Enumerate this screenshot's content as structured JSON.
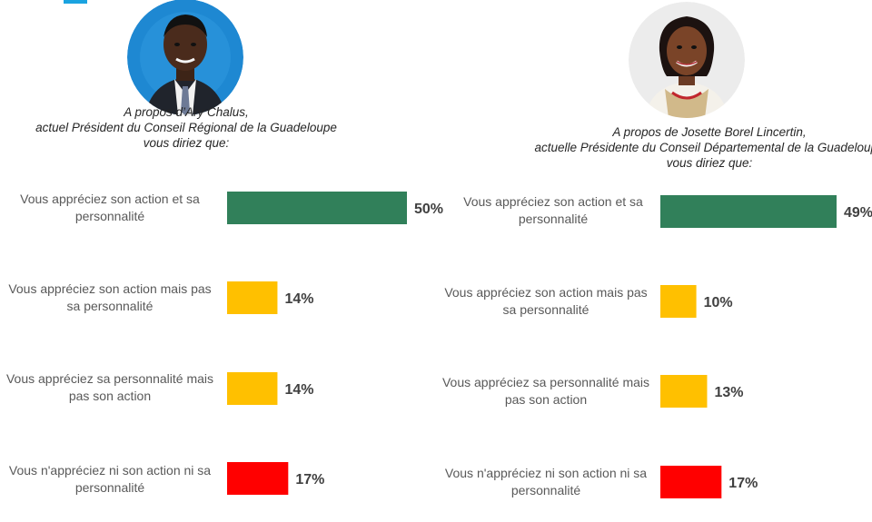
{
  "colors": {
    "green": "#31805a",
    "amber": "#ffc000",
    "red": "#ff0000",
    "accent": "#1aa3e0"
  },
  "chart_data": [
    {
      "type": "bar",
      "orientation": "horizontal",
      "caption": {
        "line1": "A propos d’Ary Chalus,",
        "line2": "actuel Président du Conseil Régional de la Guadeloupe",
        "line3": "vous diriez que:"
      },
      "categories": [
        "Vous appréciez son action et sa personnalité",
        "Vous appréciez son action mais pas sa personnalité",
        "Vous appréciez sa personnalité mais pas son action",
        "Vous n'appréciez ni son action ni sa personnalité"
      ],
      "category_lines": [
        [
          "Vous appréciez son action et sa",
          "personnalité"
        ],
        [
          "Vous appréciez son action mais pas",
          "sa personnalité"
        ],
        [
          "Vous appréciez sa personnalité mais",
          "pas son action"
        ],
        [
          "Vous n'appréciez ni son action ni sa",
          "personnalité"
        ]
      ],
      "values": [
        50,
        14,
        14,
        17
      ],
      "value_labels": [
        "50%",
        "14%",
        "14%",
        "17%"
      ],
      "bar_colors": [
        "#31805a",
        "#ffc000",
        "#ffc000",
        "#ff0000"
      ],
      "unit": "%",
      "xlim": [
        0,
        50
      ]
    },
    {
      "type": "bar",
      "orientation": "horizontal",
      "caption": {
        "line1": "A propos de Josette Borel Lincertin,",
        "line2": "actuelle Présidente du Conseil Départemental de la Guadeloupe",
        "line3": "vous diriez que:"
      },
      "categories": [
        "Vous appréciez son action et sa personnalité",
        "Vous appréciez son action mais pas sa personnalité",
        "Vous appréciez sa personnalité mais pas son action",
        "Vous n'appréciez ni son action ni sa personnalité"
      ],
      "category_lines": [
        [
          "Vous appréciez son action et sa",
          "personnalité"
        ],
        [
          "Vous appréciez son action mais pas",
          "sa personnalité"
        ],
        [
          "Vous appréciez sa personnalité mais",
          "pas son action"
        ],
        [
          "Vous n'appréciez ni son action ni sa",
          "personnalité"
        ]
      ],
      "values": [
        49,
        10,
        13,
        17
      ],
      "value_labels": [
        "49%",
        "10%",
        "13%",
        "17%"
      ],
      "bar_colors": [
        "#31805a",
        "#ffc000",
        "#ffc000",
        "#ff0000"
      ],
      "unit": "%",
      "xlim": [
        0,
        49
      ]
    }
  ]
}
